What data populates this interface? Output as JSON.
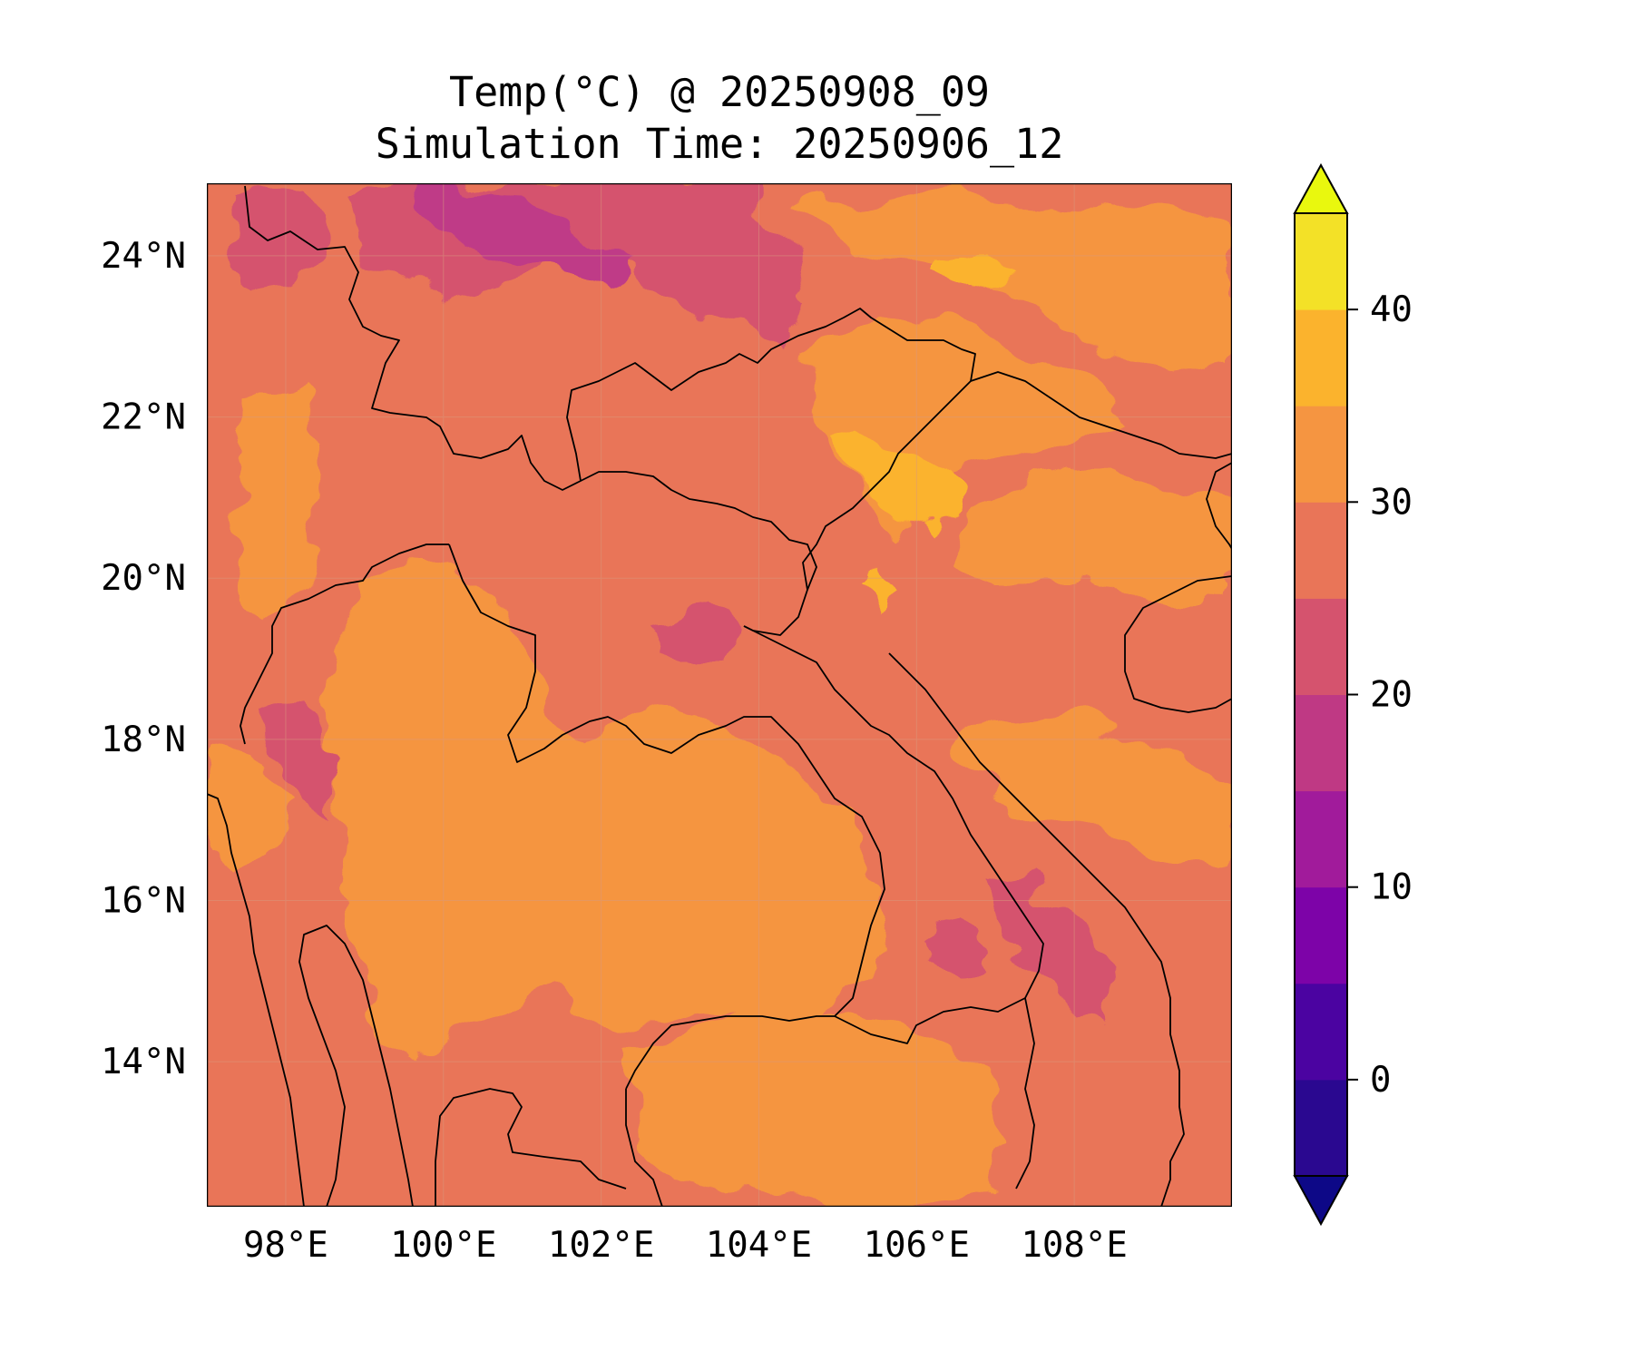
{
  "title": {
    "line1": "Temp(°C) @ 20250908_09",
    "line2": "Simulation Time: 20250906_12"
  },
  "map": {
    "lon_range": [
      97.0,
      110.0
    ],
    "lat_range": [
      12.2,
      24.9
    ],
    "lon_ticks": [
      98,
      100,
      102,
      104,
      106,
      108
    ],
    "lat_ticks": [
      14,
      16,
      18,
      20,
      22,
      24
    ],
    "lon_tick_labels": [
      "98°E",
      "100°E",
      "102°E",
      "104°E",
      "106°E",
      "108°E"
    ],
    "lat_tick_labels": [
      "14°N",
      "16°N",
      "18°N",
      "20°N",
      "22°N",
      "24°N"
    ],
    "gridlines": true,
    "colors": {
      "hot_orange": "#f59541",
      "warm_orange": "#e97558",
      "pink": "#d5536e",
      "magenta": "#bf3b87",
      "amber": "#fbb32d",
      "coastline": "#000000"
    }
  },
  "colorbar": {
    "range": [
      -5,
      45
    ],
    "levels": [
      -5,
      0,
      5,
      10,
      15,
      20,
      25,
      30,
      35,
      40,
      45
    ],
    "colors": [
      "#2a0890",
      "#4b03a1",
      "#7d03a8",
      "#a11b9b",
      "#bf3984",
      "#d5536e",
      "#e97558",
      "#f59541",
      "#fbb32d",
      "#f3e127"
    ],
    "extend_low_color": "#0d0887",
    "extend_high_color": "#e9f80e",
    "ticks": [
      0,
      10,
      20,
      30,
      40
    ],
    "tick_labels": [
      "0",
      "10",
      "20",
      "30",
      "40"
    ]
  }
}
